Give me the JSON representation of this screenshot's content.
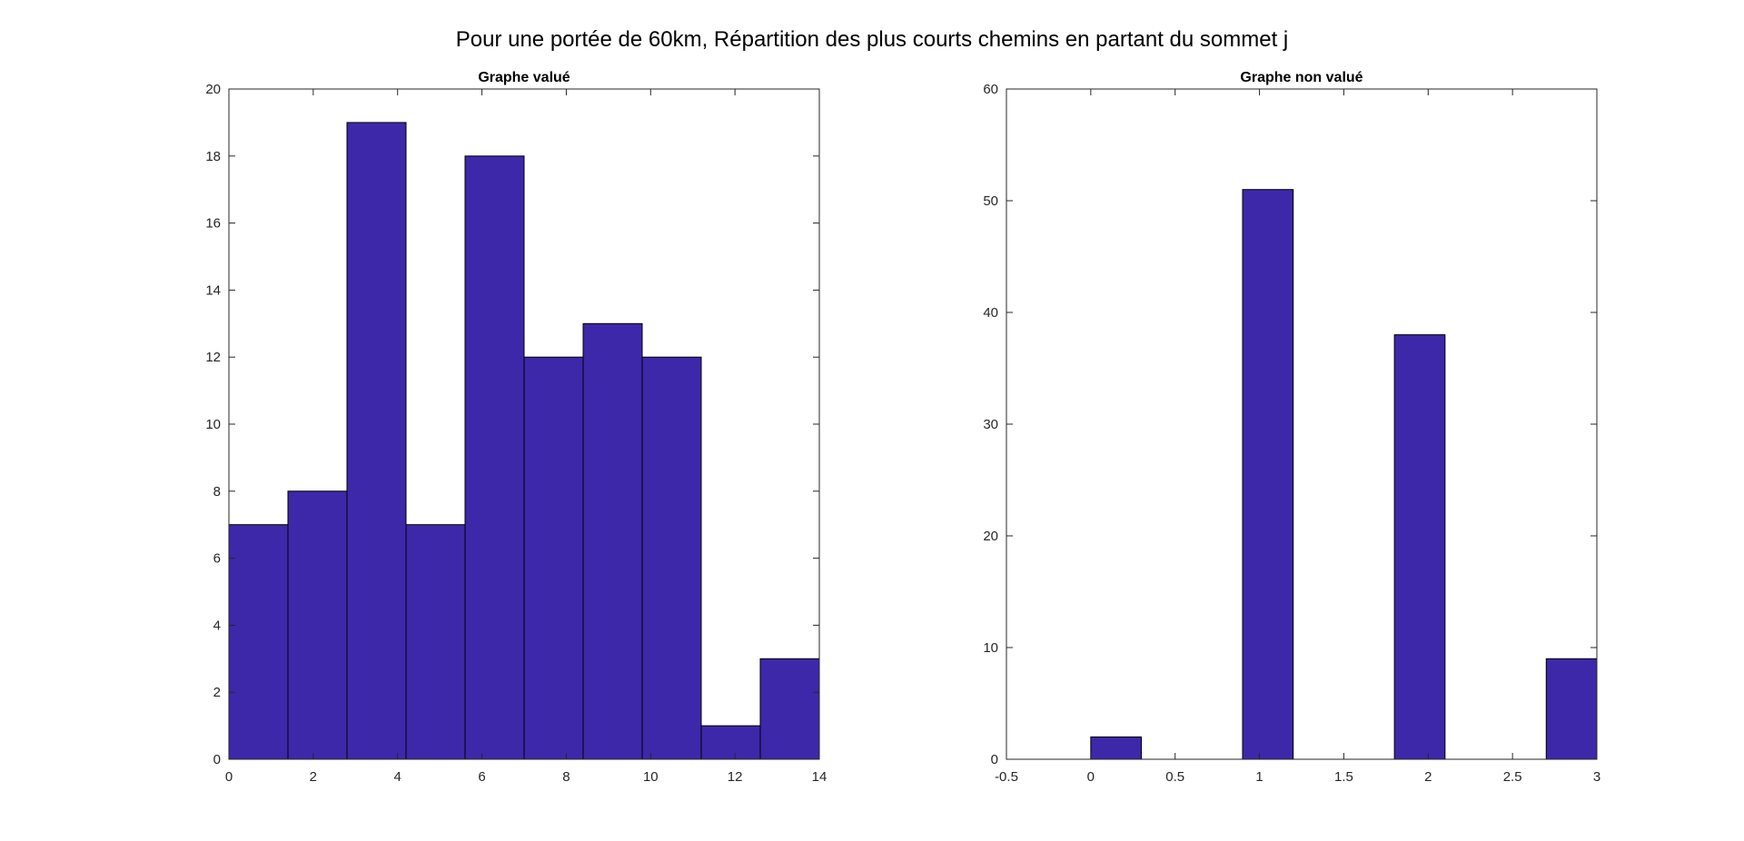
{
  "figure": {
    "title": "Pour une portée de 60km, Répartition des plus courts chemins en partant du sommet j"
  },
  "chart_data": [
    {
      "type": "bar",
      "title": "Graphe valué",
      "xlabel": "",
      "ylabel": "",
      "bar_color": "#3D28AA",
      "xlim": [
        0,
        14
      ],
      "ylim": [
        0,
        20
      ],
      "bins": [
        {
          "x0": 0,
          "x1": 1.4,
          "value": 7
        },
        {
          "x0": 1.4,
          "x1": 2.8,
          "value": 8
        },
        {
          "x0": 2.8,
          "x1": 4.2,
          "value": 19
        },
        {
          "x0": 4.2,
          "x1": 5.6,
          "value": 7
        },
        {
          "x0": 5.6,
          "x1": 7.0,
          "value": 18
        },
        {
          "x0": 7.0,
          "x1": 8.4,
          "value": 12
        },
        {
          "x0": 8.4,
          "x1": 9.8,
          "value": 13
        },
        {
          "x0": 9.8,
          "x1": 11.2,
          "value": 12
        },
        {
          "x0": 11.2,
          "x1": 12.6,
          "value": 1
        },
        {
          "x0": 12.6,
          "x1": 14.0,
          "value": 3
        }
      ],
      "xticks": [
        0,
        2,
        4,
        6,
        8,
        10,
        12,
        14
      ],
      "xtick_labels": [
        "0",
        "2",
        "4",
        "6",
        "8",
        "10",
        "12",
        "14"
      ],
      "yticks": [
        0,
        2,
        4,
        6,
        8,
        10,
        12,
        14,
        16,
        18,
        20
      ],
      "ytick_labels": [
        "0",
        "2",
        "4",
        "6",
        "8",
        "10",
        "12",
        "14",
        "16",
        "18",
        "20"
      ],
      "grid": false
    },
    {
      "type": "bar",
      "title": "Graphe non valué",
      "xlabel": "",
      "ylabel": "",
      "bar_color": "#3D28AA",
      "xlim": [
        -0.5,
        3
      ],
      "ylim": [
        0,
        60
      ],
      "bins": [
        {
          "x0": 0,
          "x1": 0.3,
          "value": 2
        },
        {
          "x0": 0.9,
          "x1": 1.2,
          "value": 51
        },
        {
          "x0": 1.8,
          "x1": 2.1,
          "value": 38
        },
        {
          "x0": 2.7,
          "x1": 3.0,
          "value": 9
        }
      ],
      "xticks": [
        -0.5,
        0,
        0.5,
        1,
        1.5,
        2,
        2.5,
        3
      ],
      "xtick_labels": [
        "-0.5",
        "0",
        "0.5",
        "1",
        "1.5",
        "2",
        "2.5",
        "3"
      ],
      "yticks": [
        0,
        10,
        20,
        30,
        40,
        50,
        60
      ],
      "ytick_labels": [
        "0",
        "10",
        "20",
        "30",
        "40",
        "50",
        "60"
      ],
      "grid": false
    }
  ]
}
